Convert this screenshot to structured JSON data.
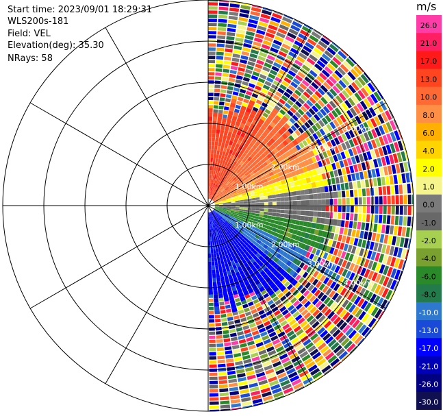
{
  "header": {
    "start_time": "Start time: 2023/09/01 18:29:31",
    "instrument": "WLS200s-181",
    "field": "Field: VEL",
    "elevation": "Elevation(deg): 35.30",
    "nrays": "NRays: 58"
  },
  "range_rings": [
    "1.00km",
    "2.00km",
    "3.00km",
    "4.00km"
  ],
  "colorbar": {
    "unit": "m/s",
    "ticks": [
      "26.0",
      "21.0",
      "17.0",
      "13.0",
      "10.0",
      "8.0",
      "6.0",
      "4.0",
      "2.0",
      "1.0",
      "0.0",
      "-1.0",
      "-2.0",
      "-4.0",
      "-6.0",
      "-8.0",
      "-10.0",
      "-13.0",
      "-17.0",
      "-21.0",
      "-26.0",
      "-30.0"
    ],
    "colors": [
      "#ff3ca8",
      "#ff1f62",
      "#ff1a1a",
      "#ff4520",
      "#ff6a34",
      "#ff8f44",
      "#ffb000",
      "#ffd400",
      "#ffff00",
      "#f5f58c",
      "#7a7a7a",
      "#686868",
      "#a8d050",
      "#7aa030",
      "#2a8a2a",
      "#237a4a",
      "#2e78d0",
      "#1a4ad8",
      "#0000ff",
      "#0000b8",
      "#000080",
      "#101050"
    ]
  }
}
